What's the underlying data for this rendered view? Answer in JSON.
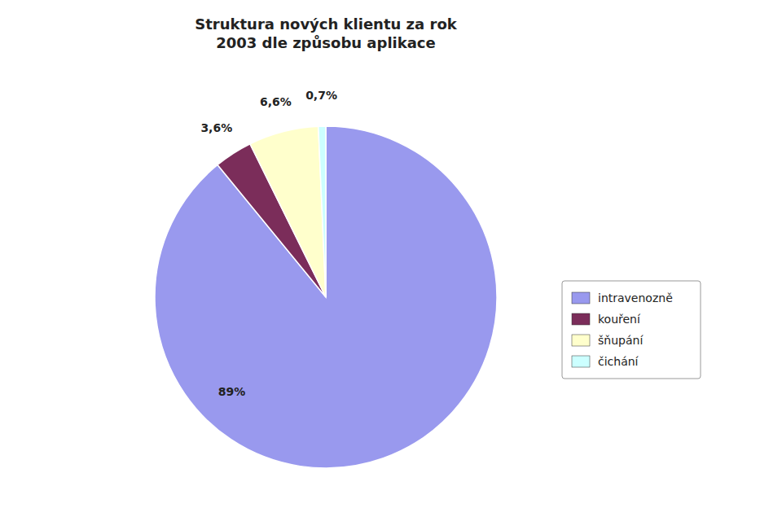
{
  "chart_data": {
    "type": "pie",
    "title": "Struktura nových klientu za rok\n2003 dle způsobu aplikace",
    "categories": [
      "intravenozně",
      "kouření",
      "šňupání",
      "čichání"
    ],
    "values": [
      89.0,
      3.6,
      6.6,
      0.7
    ],
    "value_labels": [
      "89%",
      "3,6%",
      "6,6%",
      "0,7%"
    ],
    "colors": [
      "#9999ee",
      "#7b2d5a",
      "#ffffcc",
      "#ccffff"
    ],
    "data_labels": true,
    "legend": "right"
  }
}
